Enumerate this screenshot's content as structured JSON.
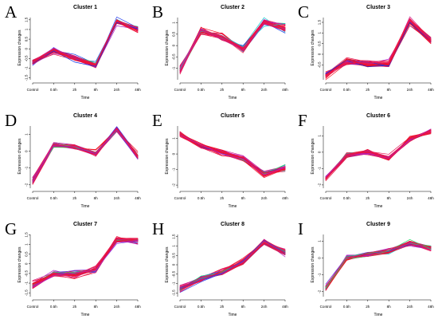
{
  "figure": {
    "background": "#ffffff",
    "series_colors": [
      "#0b2fe6",
      "#2b46f0",
      "#5a2fd6",
      "#8a2bd0",
      "#b023c8",
      "#d01c8a",
      "#e81858",
      "#ee1436",
      "#f20f1f",
      "#e8123f",
      "#11c7cf",
      "#26d86a"
    ]
  },
  "chart_data": [
    {
      "type": "line",
      "letter": "A",
      "title": "Cluster 1",
      "xlabel": "Time",
      "ylabel": "Expression changes",
      "categories": [
        "Control",
        "0.5h",
        "2h",
        "8h",
        "24h",
        "48h"
      ],
      "yticks": [
        "-1.5",
        "-1",
        "-0.5",
        "0",
        "0.5",
        "1",
        "1.5"
      ],
      "ylim": [
        -1.6,
        1.7
      ],
      "mean": [
        -0.7,
        -0.1,
        -0.45,
        -0.85,
        1.4,
        1.0
      ],
      "n_series": 40
    },
    {
      "type": "line",
      "letter": "B",
      "title": "Cluster 2",
      "xlabel": "Time",
      "ylabel": "Expression changes",
      "categories": [
        "Control",
        "0.5h",
        "2h",
        "8h",
        "24h",
        "48h"
      ],
      "yticks": [
        "-1",
        "-0.5",
        "0",
        "0.5",
        "1"
      ],
      "ylim": [
        -1.5,
        1.3
      ],
      "mean": [
        -1.05,
        0.65,
        0.35,
        -0.15,
        1.05,
        0.75
      ],
      "n_series": 40
    },
    {
      "type": "line",
      "letter": "C",
      "title": "Cluster 3",
      "xlabel": "Time",
      "ylabel": "Expression changes",
      "categories": [
        "Control",
        "0.5h",
        "2h",
        "8h",
        "24h",
        "48h"
      ],
      "yticks": [
        "-0.5",
        "0",
        "0.5",
        "1",
        "1.5"
      ],
      "ylim": [
        -1.2,
        1.8
      ],
      "mean": [
        -1.0,
        -0.35,
        -0.5,
        -0.45,
        1.55,
        0.65
      ],
      "n_series": 40
    },
    {
      "type": "line",
      "letter": "D",
      "title": "Cluster 4",
      "xlabel": "Time",
      "ylabel": "Expression changes",
      "categories": [
        "Control",
        "0.5h",
        "2h",
        "8h",
        "24h",
        "48h"
      ],
      "yticks": [
        "-2",
        "-1",
        "0",
        "1"
      ],
      "ylim": [
        -2.2,
        1.6
      ],
      "mean": [
        -1.75,
        0.35,
        0.25,
        -0.15,
        1.3,
        -0.3
      ],
      "n_series": 40
    },
    {
      "type": "line",
      "letter": "E",
      "title": "Cluster 5",
      "xlabel": "Time",
      "ylabel": "Expression changes",
      "categories": [
        "Control",
        "0.5h",
        "2h",
        "8h",
        "24h",
        "48h"
      ],
      "yticks": [
        "-2",
        "-1",
        "0",
        "1"
      ],
      "ylim": [
        -2.2,
        1.9
      ],
      "mean": [
        1.3,
        0.5,
        0.1,
        -0.3,
        -1.3,
        -0.9
      ],
      "n_series": 50
    },
    {
      "type": "line",
      "letter": "F",
      "title": "Cluster 6",
      "xlabel": "Time",
      "ylabel": "Expression changes",
      "categories": [
        "Control",
        "0.5h",
        "2h",
        "8h",
        "24h",
        "48h"
      ],
      "yticks": [
        "-2",
        "-1",
        "0",
        "1"
      ],
      "ylim": [
        -2.2,
        1.7
      ],
      "mean": [
        -1.6,
        -0.2,
        0.0,
        -0.35,
        0.8,
        1.25
      ],
      "n_series": 40
    },
    {
      "type": "line",
      "letter": "G",
      "title": "Cluster 7",
      "xlabel": "Time",
      "ylabel": "Expression changes",
      "categories": [
        "Control",
        "0.5h",
        "2h",
        "8h",
        "24h",
        "48h"
      ],
      "yticks": [
        "-1.5",
        "-1",
        "-0.5",
        "0",
        "0.5",
        "1",
        "1.5"
      ],
      "ylim": [
        -1.7,
        1.6
      ],
      "mean": [
        -1.1,
        -0.5,
        -0.55,
        -0.3,
        1.25,
        1.2
      ],
      "n_series": 40
    },
    {
      "type": "line",
      "letter": "H",
      "title": "Cluster 8",
      "xlabel": "Time",
      "ylabel": "Expression changes",
      "categories": [
        "Control",
        "0.5h",
        "2h",
        "8h",
        "24h",
        "48h"
      ],
      "yticks": [
        "-1.5",
        "-1",
        "-0.5",
        "0",
        "0.5",
        "1",
        "1.5"
      ],
      "ylim": [
        -1.7,
        1.7
      ],
      "mean": [
        -1.25,
        -0.75,
        -0.4,
        0.15,
        1.25,
        0.65
      ],
      "n_series": 40
    },
    {
      "type": "line",
      "letter": "I",
      "title": "Cluster 9",
      "xlabel": "Time",
      "ylabel": "Expression changes",
      "categories": [
        "Control",
        "0.5h",
        "2h",
        "8h",
        "24h",
        "48h"
      ],
      "yticks": [
        "-2",
        "-1",
        "0",
        "1"
      ],
      "ylim": [
        -2.3,
        1.5
      ],
      "mean": [
        -1.8,
        0.0,
        0.2,
        0.4,
        0.9,
        0.6
      ],
      "n_series": 40
    }
  ]
}
